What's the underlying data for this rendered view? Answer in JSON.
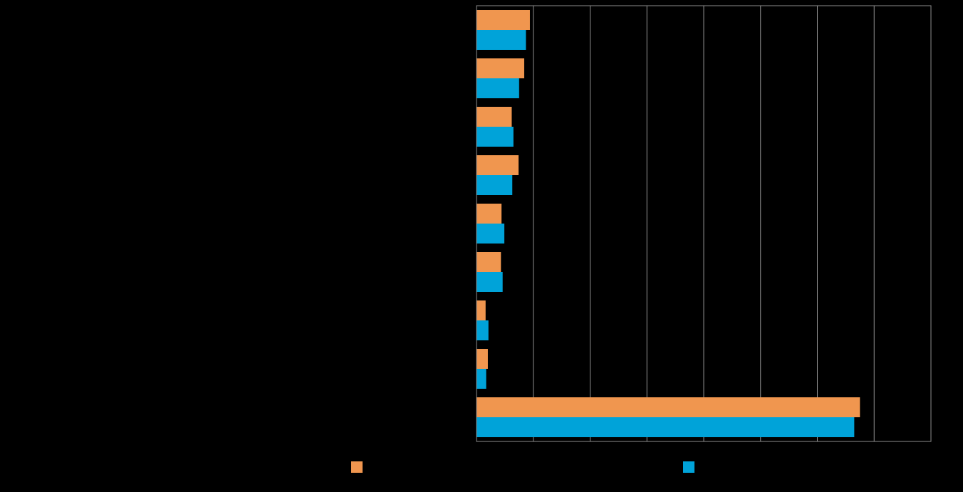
{
  "chart_data": {
    "type": "bar",
    "orientation": "horizontal",
    "title": "",
    "xlabel": "",
    "ylabel": "",
    "xlim": [
      0,
      80
    ],
    "grid": true,
    "categories": [
      "",
      "",
      "",
      "",
      "",
      "",
      "",
      "",
      ""
    ],
    "series": [
      {
        "name": "",
        "color": "#F0964F",
        "values": [
          9.4,
          8.4,
          6.2,
          7.4,
          4.4,
          4.3,
          1.6,
          2.0,
          67.5
        ]
      },
      {
        "name": "",
        "color": "#00A3D9",
        "values": [
          8.7,
          7.5,
          6.5,
          6.3,
          4.9,
          4.6,
          2.1,
          1.7,
          66.5
        ]
      }
    ],
    "legend": "bottom"
  }
}
